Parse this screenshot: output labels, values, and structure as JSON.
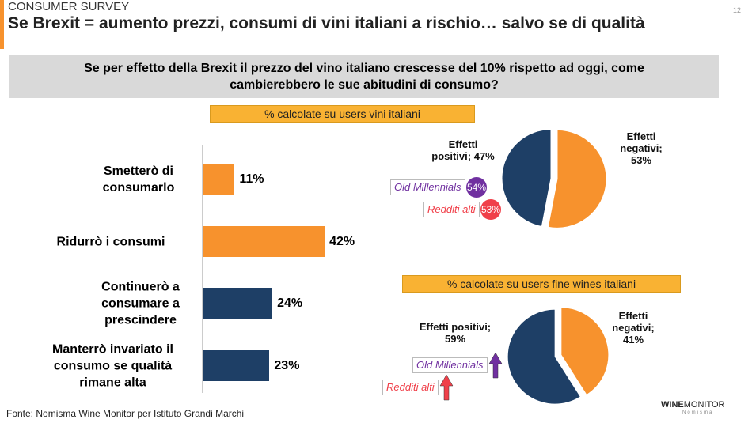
{
  "header": {
    "kicker": "CONSUMER SURVEY",
    "title": "Se Brexit = aumento prezzi, consumi di vini italiani a rischio… salvo se di qualità",
    "page": "12"
  },
  "question": "Se per effetto della Brexit il prezzo del vino italiano crescesse del 10% rispetto ad oggi, come cambierebbero le sue abitudini di consumo?",
  "source": "Fonte: Nomisma Wine Monitor per Istituto Grandi Marchi",
  "logo": {
    "brand": "WINE",
    "product": "MONITOR",
    "company": "Nomisma"
  },
  "chart_data": [
    {
      "type": "bar",
      "orientation": "horizontal",
      "categories": [
        "Smetterò di consumarlo",
        "Ridurrò i consumi",
        "Continuerò a consumare a prescindere",
        "Manterrò invariato il consumo se qualità rimane alta"
      ],
      "values": [
        11,
        42,
        24,
        23
      ],
      "value_labels": [
        "11%",
        "42%",
        "24%",
        "23%"
      ],
      "colors": [
        "#f7922d",
        "#f7922d",
        "#1e3f66",
        "#1e3f66"
      ]
    },
    {
      "type": "pie",
      "subtitle": "% calcolate su users vini italiani",
      "categories": [
        "Effetti negativi;",
        "Effetti positivi;"
      ],
      "values": [
        53,
        47
      ],
      "value_labels": [
        "53%",
        "47%"
      ],
      "colors": [
        "#f7922d",
        "#1e3f66"
      ],
      "annotations": [
        {
          "label": "Old Millennials",
          "value": 54,
          "value_label": "54%",
          "color": "#7030a0"
        },
        {
          "label": "Redditi alti",
          "value": 53,
          "value_label": "53%",
          "color": "#f0404a"
        }
      ]
    },
    {
      "type": "pie",
      "subtitle": "% calcolate su users fine wines italiani",
      "categories": [
        "Effetti negativi;",
        "Effetti positivi;"
      ],
      "values": [
        41,
        59
      ],
      "value_labels": [
        "41%",
        "59%"
      ],
      "colors": [
        "#f7922d",
        "#1e3f66"
      ],
      "annotations": [
        {
          "label": "Old Millennials",
          "color": "#7030a0"
        },
        {
          "label": "Redditi alti",
          "color": "#f0404a"
        }
      ]
    }
  ]
}
